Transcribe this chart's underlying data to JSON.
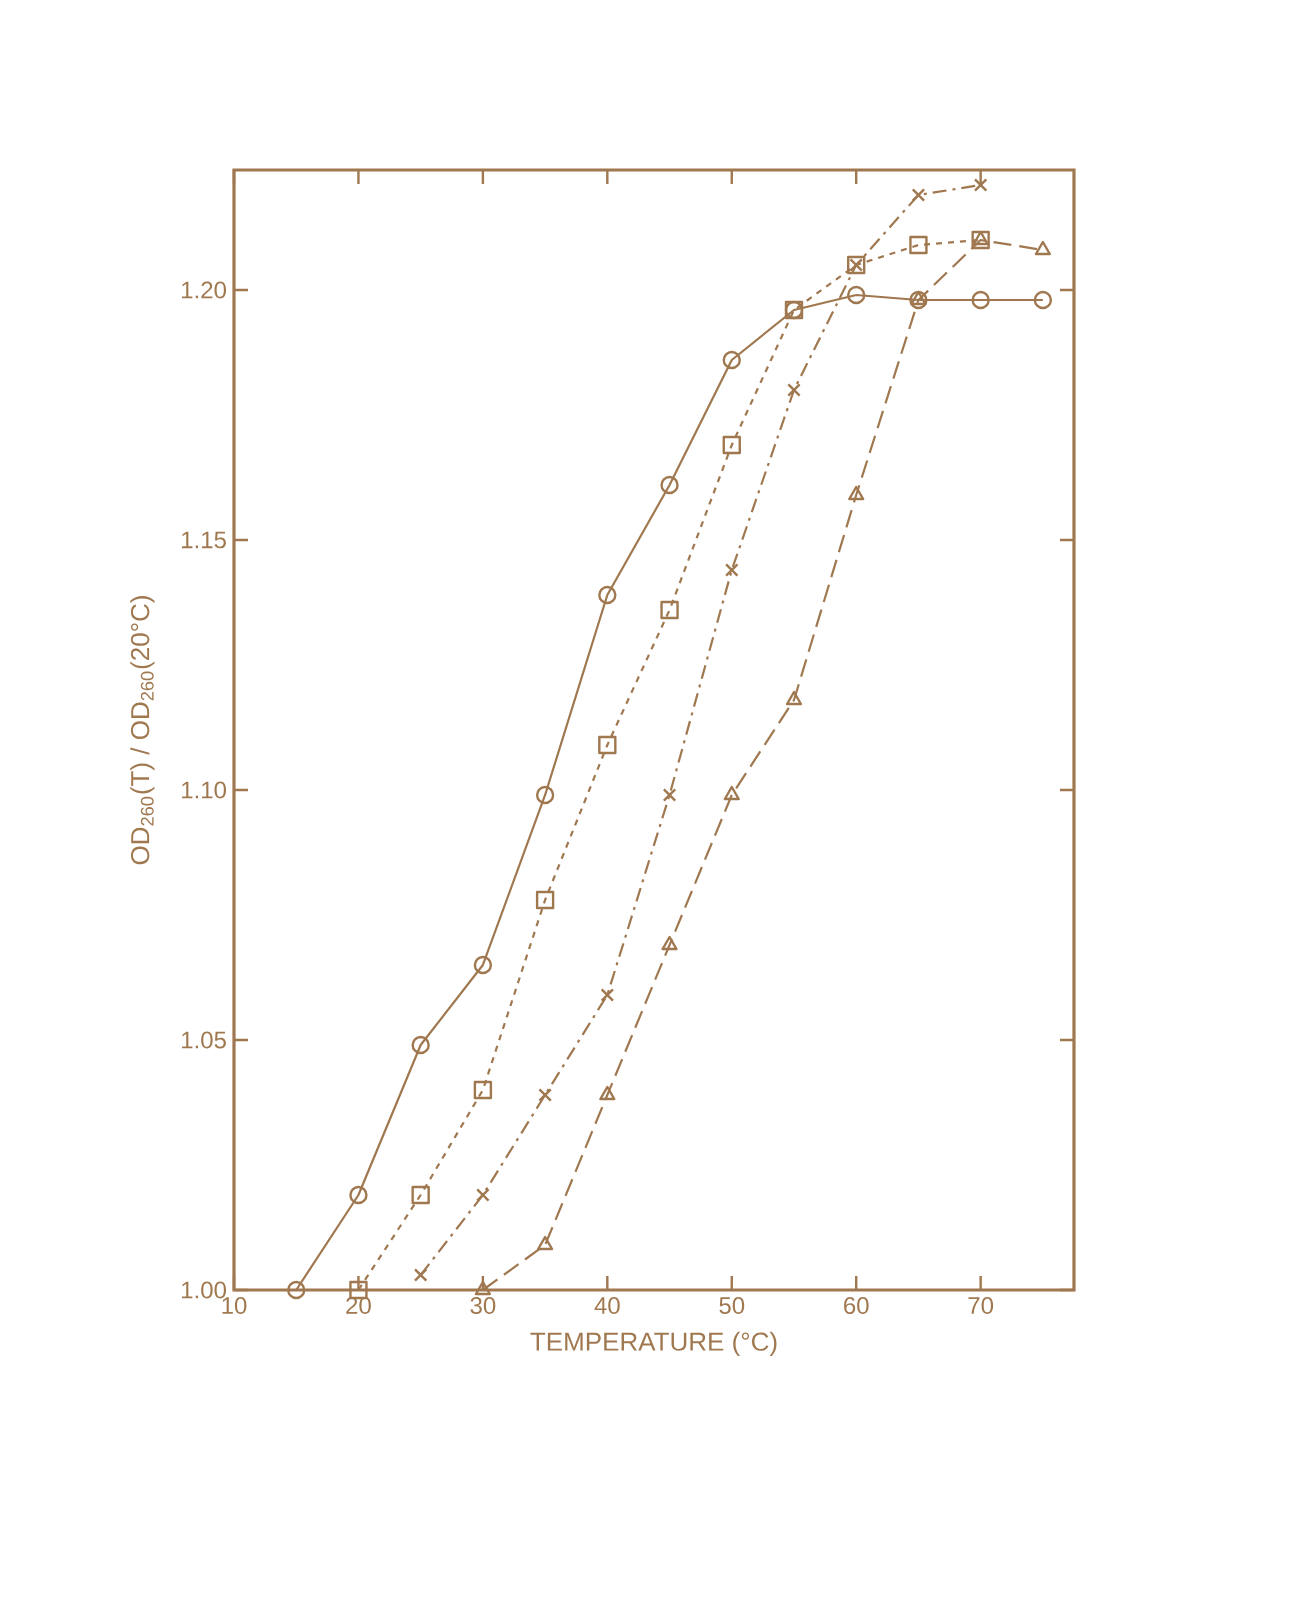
{
  "chart_data": {
    "type": "line",
    "xlabel": "TEMPERATURE (°C)",
    "ylabel": "OD$_{260}$(T) / OD$_{260}$(20°C)",
    "xlim": [
      10,
      77.5
    ],
    "ylim": [
      1.0,
      1.224
    ],
    "xticks": [
      10,
      20,
      30,
      40,
      50,
      60,
      70
    ],
    "yticks": [
      {
        "value": 1.0,
        "label": "1.00"
      },
      {
        "value": 1.05,
        "label": "1.05"
      },
      {
        "value": 1.1,
        "label": "1.10"
      },
      {
        "value": 1.15,
        "label": "1.15"
      },
      {
        "value": 1.2,
        "label": "1.20"
      }
    ],
    "grid": false,
    "series": [
      {
        "color": "#a07850",
        "marker": "circle",
        "line_style": "solid",
        "x": [
          15,
          20,
          25,
          30,
          35,
          40,
          45,
          50,
          55,
          60,
          65,
          70,
          75
        ],
        "values": [
          1.0,
          1.019,
          1.049,
          1.065,
          1.099,
          1.139,
          1.161,
          1.186,
          1.196,
          1.199,
          1.198,
          1.198,
          1.198
        ]
      },
      {
        "color": "#a07850",
        "marker": "square",
        "line_style": "dotted",
        "x": [
          20,
          25,
          30,
          35,
          40,
          45,
          50,
          55,
          60,
          65,
          70
        ],
        "values": [
          1.0,
          1.019,
          1.04,
          1.078,
          1.109,
          1.136,
          1.169,
          1.196,
          1.205,
          1.209,
          1.21
        ]
      },
      {
        "color": "#a07850",
        "marker": "cross",
        "line_style": "dashdot",
        "x": [
          25,
          30,
          35,
          40,
          45,
          50,
          55,
          60,
          65,
          70
        ],
        "values": [
          1.003,
          1.019,
          1.039,
          1.059,
          1.099,
          1.144,
          1.18,
          1.205,
          1.219,
          1.221
        ]
      },
      {
        "color": "#a07850",
        "marker": "triangle",
        "line_style": "dashed",
        "x": [
          30,
          35,
          40,
          45,
          50,
          55,
          60,
          65,
          70,
          75
        ],
        "values": [
          1.0,
          1.009,
          1.039,
          1.069,
          1.099,
          1.118,
          1.159,
          1.198,
          1.21,
          1.208
        ]
      }
    ]
  }
}
